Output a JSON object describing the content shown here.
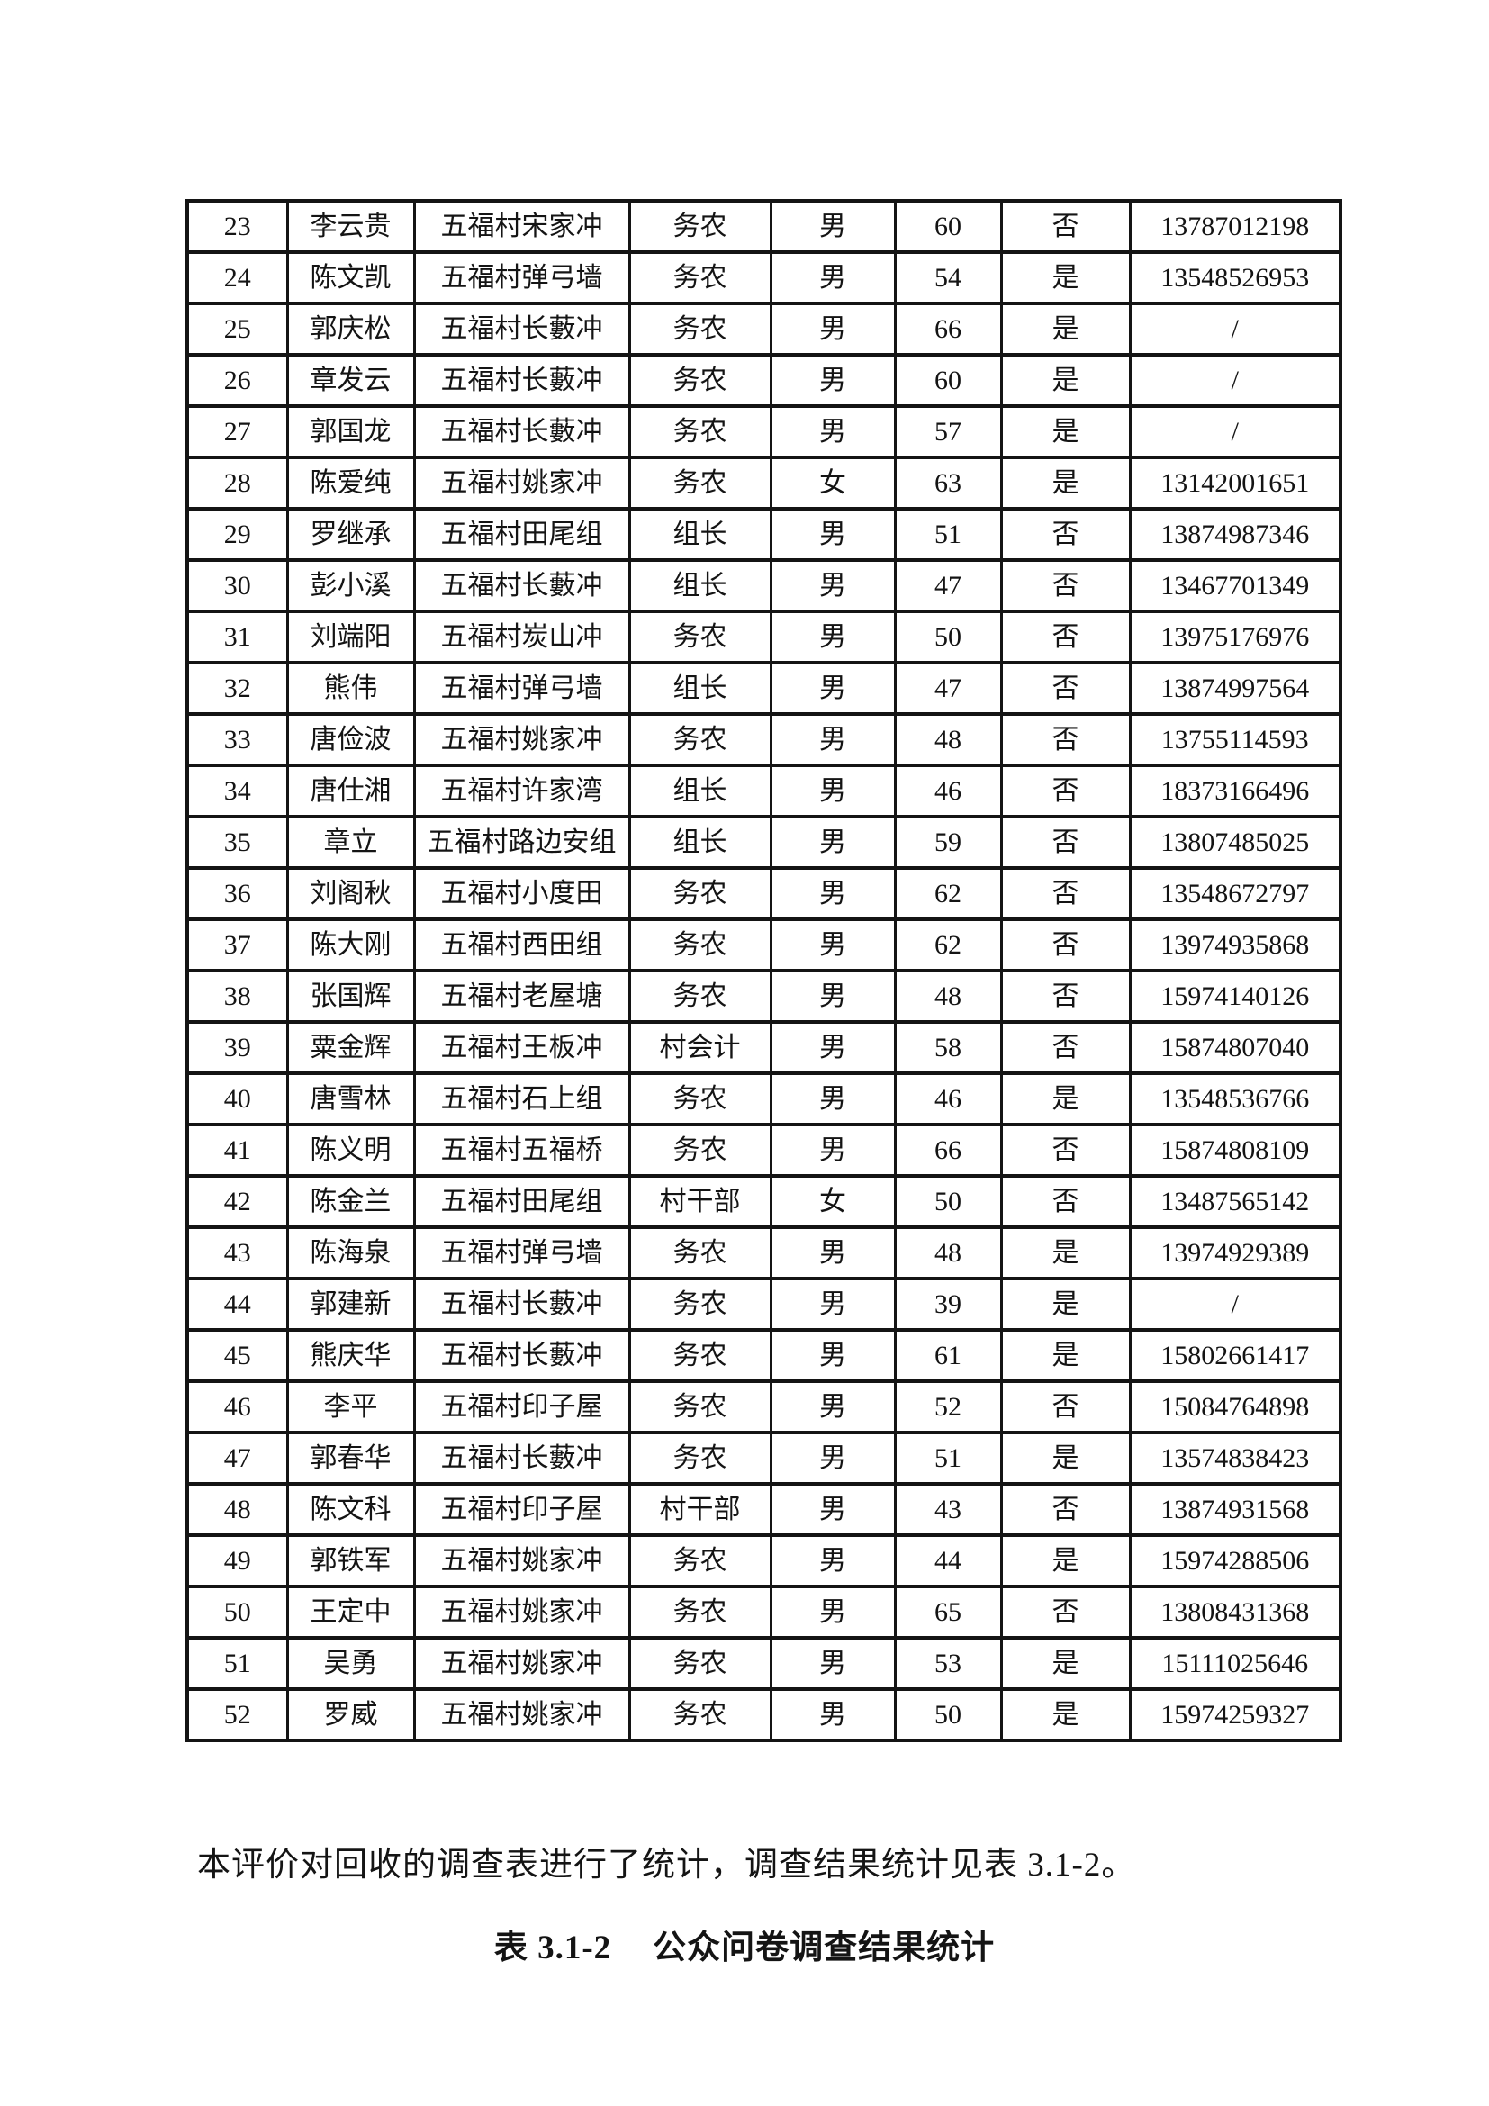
{
  "paragraph": "本评价对回收的调查表进行了统计，调查结果统计见表 3.1-2。",
  "caption": {
    "label": "表 3.1-2",
    "title": "公众问卷调查结果统计"
  },
  "table": {
    "rows": [
      [
        "23",
        "李云贵",
        "五福村宋家冲",
        "务农",
        "男",
        "60",
        "否",
        "13787012198"
      ],
      [
        "24",
        "陈文凯",
        "五福村弹弓墙",
        "务农",
        "男",
        "54",
        "是",
        "13548526953"
      ],
      [
        "25",
        "郭庆松",
        "五福村长藪冲",
        "务农",
        "男",
        "66",
        "是",
        "/"
      ],
      [
        "26",
        "章发云",
        "五福村长藪冲",
        "务农",
        "男",
        "60",
        "是",
        "/"
      ],
      [
        "27",
        "郭国龙",
        "五福村长藪冲",
        "务农",
        "男",
        "57",
        "是",
        "/"
      ],
      [
        "28",
        "陈爱纯",
        "五福村姚家冲",
        "务农",
        "女",
        "63",
        "是",
        "13142001651"
      ],
      [
        "29",
        "罗继承",
        "五福村田尾组",
        "组长",
        "男",
        "51",
        "否",
        "13874987346"
      ],
      [
        "30",
        "彭小溪",
        "五福村长藪冲",
        "组长",
        "男",
        "47",
        "否",
        "13467701349"
      ],
      [
        "31",
        "刘端阳",
        "五福村炭山冲",
        "务农",
        "男",
        "50",
        "否",
        "13975176976"
      ],
      [
        "32",
        "熊伟",
        "五福村弹弓墙",
        "组长",
        "男",
        "47",
        "否",
        "13874997564"
      ],
      [
        "33",
        "唐俭波",
        "五福村姚家冲",
        "务农",
        "男",
        "48",
        "否",
        "13755114593"
      ],
      [
        "34",
        "唐仕湘",
        "五福村许家湾",
        "组长",
        "男",
        "46",
        "否",
        "18373166496"
      ],
      [
        "35",
        "章立",
        "五福村路边安组",
        "组长",
        "男",
        "59",
        "否",
        "13807485025"
      ],
      [
        "36",
        "刘阁秋",
        "五福村小度田",
        "务农",
        "男",
        "62",
        "否",
        "13548672797"
      ],
      [
        "37",
        "陈大刚",
        "五福村西田组",
        "务农",
        "男",
        "62",
        "否",
        "13974935868"
      ],
      [
        "38",
        "张国辉",
        "五福村老屋塘",
        "务农",
        "男",
        "48",
        "否",
        "15974140126"
      ],
      [
        "39",
        "粟金辉",
        "五福村王板冲",
        "村会计",
        "男",
        "58",
        "否",
        "15874807040"
      ],
      [
        "40",
        "唐雪林",
        "五福村石上组",
        "务农",
        "男",
        "46",
        "是",
        "13548536766"
      ],
      [
        "41",
        "陈义明",
        "五福村五福桥",
        "务农",
        "男",
        "66",
        "否",
        "15874808109"
      ],
      [
        "42",
        "陈金兰",
        "五福村田尾组",
        "村干部",
        "女",
        "50",
        "否",
        "13487565142"
      ],
      [
        "43",
        "陈海泉",
        "五福村弹弓墙",
        "务农",
        "男",
        "48",
        "是",
        "13974929389"
      ],
      [
        "44",
        "郭建新",
        "五福村长藪冲",
        "务农",
        "男",
        "39",
        "是",
        "/"
      ],
      [
        "45",
        "熊庆华",
        "五福村长藪冲",
        "务农",
        "男",
        "61",
        "是",
        "15802661417"
      ],
      [
        "46",
        "李平",
        "五福村印子屋",
        "务农",
        "男",
        "52",
        "否",
        "15084764898"
      ],
      [
        "47",
        "郭春华",
        "五福村长藪冲",
        "务农",
        "男",
        "51",
        "是",
        "13574838423"
      ],
      [
        "48",
        "陈文科",
        "五福村印子屋",
        "村干部",
        "男",
        "43",
        "否",
        "13874931568"
      ],
      [
        "49",
        "郭铁军",
        "五福村姚家冲",
        "务农",
        "男",
        "44",
        "是",
        "15974288506"
      ],
      [
        "50",
        "王定中",
        "五福村姚家冲",
        "务农",
        "男",
        "65",
        "否",
        "13808431368"
      ],
      [
        "51",
        "吴勇",
        "五福村姚家冲",
        "务农",
        "男",
        "53",
        "是",
        "15111025646"
      ],
      [
        "52",
        "罗威",
        "五福村姚家冲",
        "务农",
        "男",
        "50",
        "是",
        "15974259327"
      ]
    ]
  }
}
